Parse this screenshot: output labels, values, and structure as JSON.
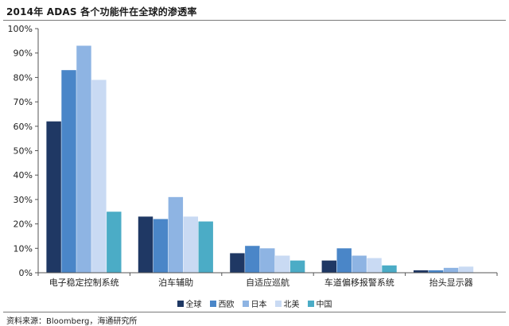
{
  "chart_data": {
    "type": "bar",
    "title": "2014年 ADAS 各个功能件在全球的渗透率",
    "categories": [
      "电子稳定控制系统",
      "泊车辅助",
      "自适应巡航",
      "车道偏移报警系统",
      "抬头显示器"
    ],
    "series": [
      {
        "name": "全球",
        "color": "#1f3864",
        "values": [
          62,
          23,
          8,
          5,
          1
        ]
      },
      {
        "name": "西欧",
        "color": "#4a86c8",
        "values": [
          83,
          22,
          11,
          10,
          1
        ]
      },
      {
        "name": "日本",
        "color": "#8eb4e3",
        "values": [
          93,
          31,
          10,
          7,
          2
        ]
      },
      {
        "name": "北美",
        "color": "#c9daf3",
        "values": [
          79,
          23,
          7,
          6,
          2.5
        ]
      },
      {
        "name": "中国",
        "color": "#4bacc6",
        "values": [
          25,
          21,
          5,
          3,
          0
        ]
      }
    ],
    "yticks": [
      "0%",
      "10%",
      "20%",
      "30%",
      "40%",
      "50%",
      "60%",
      "70%",
      "80%",
      "90%",
      "100%"
    ],
    "ylim": [
      0,
      100
    ],
    "xlabel": "",
    "ylabel": "",
    "grid": false,
    "legend": "bottom"
  },
  "source_text": "资料来源：Bloomberg，海通研究所"
}
